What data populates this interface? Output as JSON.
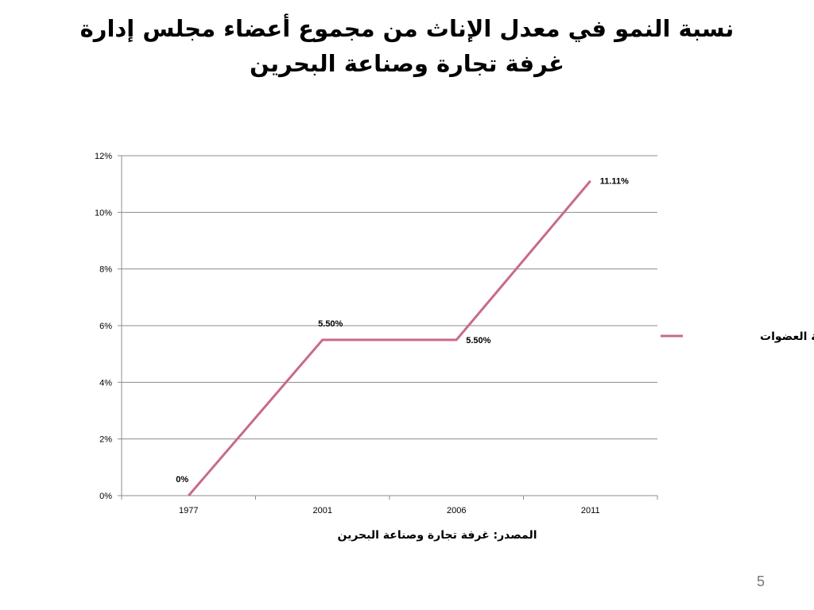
{
  "slide": {
    "title": "نسبة النمو في معدل الإناث من مجموع أعضاء مجلس إدارة غرفة تجارة وصناعة البحرين",
    "source": "المصدر: غرفة تجارة وصناعة البحرين",
    "page_number": "5"
  },
  "chart_data": {
    "type": "line",
    "title": "نسبة النمو في معدل الإناث من مجموع أعضاء مجلس إدارة غرفة تجارة وصناعة البحرين",
    "categories": [
      "1977",
      "2001",
      "2006",
      "2011"
    ],
    "series": [
      {
        "name": "نسبة العضوات",
        "values": [
          0,
          5.5,
          5.5,
          11.11
        ],
        "labels": [
          "0%",
          "5.50%",
          "5.50%",
          "11.11%"
        ],
        "color": "#C9698E"
      }
    ],
    "ylim": [
      0,
      12
    ],
    "yticks": [
      0,
      2,
      4,
      6,
      8,
      10,
      12
    ],
    "ytick_labels": [
      "0%",
      "2%",
      "4%",
      "6%",
      "8%",
      "10%",
      "12%"
    ],
    "xlabel": "",
    "ylabel": "",
    "grid": true,
    "legend_position": "right",
    "colors": {
      "gridline": "#8C8C8C",
      "axis": "#8C8C8C"
    }
  }
}
